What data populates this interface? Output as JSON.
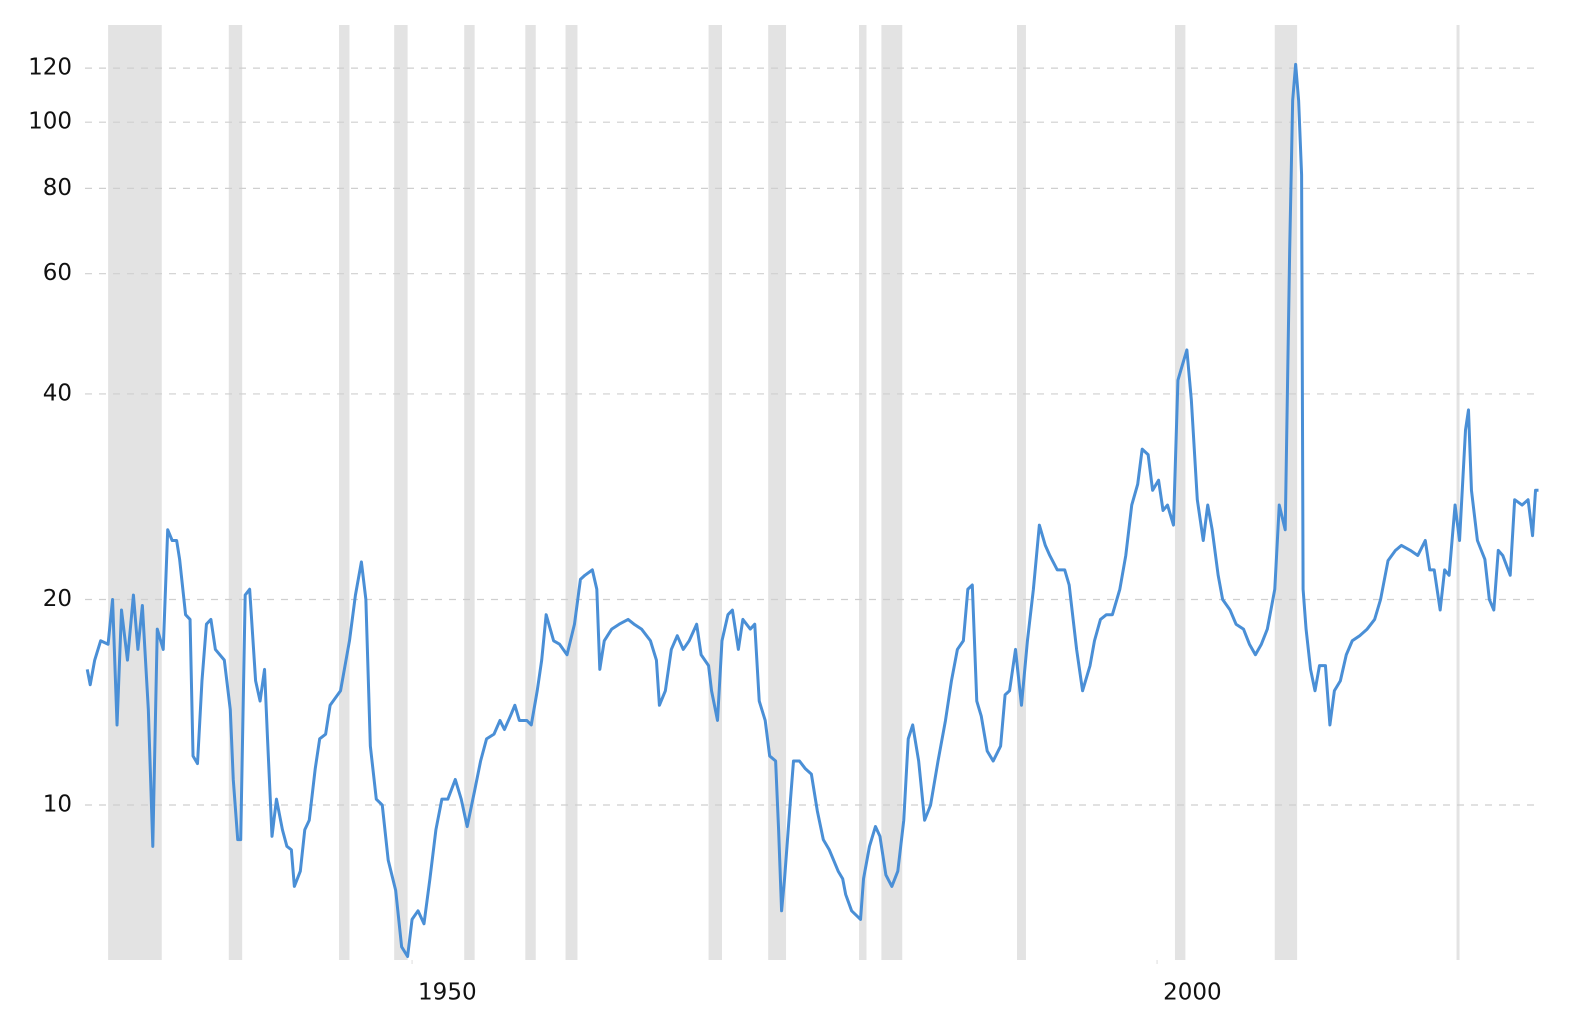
{
  "chart_data": {
    "type": "line",
    "log_scale": true,
    "grid": true,
    "shade_color": "#e3e3e3",
    "xlim": [
      1928.05,
      2025.7
    ],
    "ylim": [
      5.93,
      136
    ],
    "xticks": [
      1950,
      2000
    ],
    "yticks": [
      10,
      20,
      40,
      60,
      80,
      100,
      120
    ],
    "shaded_periods": [
      [
        1929.6,
        1933.2
      ],
      [
        1937.7,
        1938.6
      ],
      [
        1945.1,
        1945.8
      ],
      [
        1948.8,
        1949.7
      ],
      [
        1953.5,
        1954.2
      ],
      [
        1957.6,
        1958.3
      ],
      [
        1960.3,
        1961.1
      ],
      [
        1969.9,
        1970.8
      ],
      [
        1973.9,
        1975.1
      ],
      [
        1980.0,
        1980.5
      ],
      [
        1981.5,
        1982.9
      ],
      [
        1990.6,
        1991.2
      ],
      [
        2001.2,
        2001.9
      ],
      [
        2007.9,
        2009.4
      ],
      [
        2020.1,
        2020.3
      ]
    ],
    "series": [
      {
        "color": "#4a8fd6",
        "x": [
          1928.2,
          1928.4,
          1928.7,
          1929.1,
          1929.6,
          1929.9,
          1930.2,
          1930.5,
          1930.9,
          1931.3,
          1931.6,
          1931.9,
          1932.3,
          1932.6,
          1932.9,
          1933.3,
          1933.6,
          1933.9,
          1934.2,
          1934.4,
          1934.8,
          1935.1,
          1935.3,
          1935.6,
          1935.9,
          1936.2,
          1936.5,
          1936.8,
          1937.4,
          1937.8,
          1938.0,
          1938.3,
          1938.5,
          1938.8,
          1939.1,
          1939.5,
          1939.8,
          1940.1,
          1940.3,
          1940.6,
          1940.9,
          1941.3,
          1941.6,
          1941.9,
          1942.1,
          1942.5,
          1942.8,
          1943.1,
          1943.5,
          1943.8,
          1944.2,
          1944.5,
          1945.2,
          1945.8,
          1946.2,
          1946.6,
          1946.9,
          1947.2,
          1947.6,
          1948.0,
          1948.4,
          1948.9,
          1949.3,
          1949.7,
          1950.0,
          1950.4,
          1950.8,
          1951.2,
          1951.6,
          1952.0,
          1952.4,
          1952.9,
          1953.3,
          1953.7,
          1954.2,
          1954.6,
          1955.0,
          1955.5,
          1955.9,
          1956.2,
          1956.6,
          1956.9,
          1957.2,
          1957.7,
          1958.0,
          1958.4,
          1958.7,
          1959.0,
          1959.5,
          1959.9,
          1960.4,
          1960.9,
          1961.3,
          1961.6,
          1962.1,
          1962.4,
          1962.6,
          1962.9,
          1963.4,
          1963.9,
          1964.5,
          1964.9,
          1965.4,
          1966.0,
          1966.4,
          1966.6,
          1967.0,
          1967.4,
          1967.8,
          1968.2,
          1968.6,
          1969.1,
          1969.4,
          1969.9,
          1970.1,
          1970.5,
          1970.8,
          1971.2,
          1971.5,
          1971.9,
          1972.2,
          1972.7,
          1973.0,
          1973.3,
          1973.7,
          1974.0,
          1974.4,
          1974.6,
          1974.8,
          1975.0,
          1975.4,
          1975.6,
          1976.0,
          1976.4,
          1976.8,
          1977.2,
          1977.6,
          1978.0,
          1978.6,
          1978.9,
          1979.1,
          1979.5,
          1980.1,
          1980.3,
          1980.7,
          1981.1,
          1981.4,
          1981.8,
          1982.2,
          1982.6,
          1983.0,
          1983.3,
          1983.6,
          1984.0,
          1984.4,
          1984.8,
          1985.3,
          1985.8,
          1986.2,
          1986.6,
          1987.0,
          1987.3,
          1987.6,
          1987.9,
          1988.2,
          1988.6,
          1989.0,
          1989.5,
          1989.8,
          1990.1,
          1990.5,
          1990.9,
          1991.3,
          1991.7,
          1992.1,
          1992.5,
          1992.8,
          1993.3,
          1993.8,
          1994.1,
          1994.6,
          1995.0,
          1995.5,
          1995.8,
          1996.2,
          1996.6,
          1997.0,
          1997.5,
          1997.9,
          1998.3,
          1998.7,
          1999.0,
          1999.4,
          1999.7,
          2000.1,
          2000.4,
          2000.7,
          2001.1,
          2001.4,
          2001.7,
          2002.0,
          2002.3,
          2002.7,
          2003.1,
          2003.4,
          2003.7,
          2004.1,
          2004.4,
          2004.9,
          2005.3,
          2005.8,
          2006.2,
          2006.6,
          2007.0,
          2007.4,
          2007.9,
          2008.2,
          2008.6,
          2008.9,
          2009.1,
          2009.3,
          2009.5,
          2009.7,
          2009.8,
          2010.0,
          2010.3,
          2010.6,
          2010.9,
          2011.3,
          2011.6,
          2011.9,
          2012.3,
          2012.7,
          2013.1,
          2013.6,
          2014.1,
          2014.6,
          2015.0,
          2015.5,
          2016.0,
          2016.4,
          2017.0,
          2017.5,
          2018.0,
          2018.3,
          2018.6,
          2019.0,
          2019.3,
          2019.6,
          2020.0,
          2020.3,
          2020.7,
          2020.9,
          2021.1,
          2021.5,
          2022.0,
          2022.3,
          2022.6,
          2022.9,
          2023.2,
          2023.7,
          2024.0,
          2024.5,
          2024.9,
          2025.2,
          2025.4,
          2025.6
        ],
        "values": [
          15.8,
          15.0,
          16.3,
          17.4,
          17.2,
          20.0,
          13.1,
          19.3,
          16.3,
          20.3,
          16.9,
          19.6,
          13.8,
          8.7,
          18.1,
          16.9,
          25.3,
          24.4,
          24.4,
          22.9,
          19.0,
          18.7,
          11.8,
          11.5,
          15.2,
          18.4,
          18.7,
          16.9,
          16.3,
          13.8,
          10.9,
          8.9,
          8.9,
          20.3,
          20.7,
          15.2,
          14.2,
          15.8,
          12.5,
          9.0,
          10.2,
          9.2,
          8.7,
          8.6,
          7.6,
          8.0,
          9.2,
          9.5,
          11.3,
          12.5,
          12.7,
          14.0,
          14.7,
          17.4,
          20.3,
          22.7,
          20.0,
          12.2,
          10.2,
          10.0,
          8.3,
          7.5,
          6.2,
          6.0,
          6.8,
          7.0,
          6.7,
          7.8,
          9.2,
          10.2,
          10.2,
          10.9,
          10.2,
          9.3,
          10.5,
          11.6,
          12.5,
          12.7,
          13.3,
          12.9,
          13.5,
          14.0,
          13.3,
          13.3,
          13.1,
          14.7,
          16.3,
          19.0,
          17.4,
          17.2,
          16.6,
          18.4,
          21.4,
          21.7,
          22.1,
          20.7,
          15.8,
          17.4,
          18.1,
          18.4,
          18.7,
          18.4,
          18.1,
          17.4,
          16.3,
          14.0,
          14.7,
          16.9,
          17.7,
          16.9,
          17.4,
          18.4,
          16.6,
          16.0,
          14.7,
          13.3,
          17.4,
          19.0,
          19.3,
          16.9,
          18.7,
          18.1,
          18.4,
          14.2,
          13.3,
          11.8,
          11.6,
          9.2,
          7.0,
          7.8,
          10.2,
          11.6,
          11.6,
          11.3,
          11.1,
          9.8,
          8.9,
          8.6,
          8.0,
          7.8,
          7.4,
          7.0,
          6.8,
          7.8,
          8.7,
          9.3,
          9.0,
          7.9,
          7.6,
          8.0,
          9.5,
          12.5,
          13.1,
          11.6,
          9.5,
          10.0,
          11.6,
          13.3,
          15.2,
          16.9,
          17.4,
          20.7,
          21.0,
          14.2,
          13.5,
          12.0,
          11.6,
          12.2,
          14.5,
          14.7,
          16.9,
          14.0,
          17.4,
          20.7,
          25.7,
          24.0,
          23.2,
          22.1,
          22.1,
          21.0,
          16.9,
          14.7,
          16.0,
          17.4,
          18.7,
          19.0,
          19.0,
          20.7,
          23.2,
          27.5,
          29.5,
          33.2,
          32.6,
          28.9,
          29.9,
          27.0,
          27.5,
          25.7,
          41.9,
          44.1,
          46.4,
          39.2,
          28.0,
          24.4,
          27.5,
          25.3,
          21.7,
          20.0,
          19.3,
          18.4,
          18.1,
          17.2,
          16.6,
          17.2,
          18.1,
          20.7,
          27.5,
          25.3,
          65,
          107.6,
          121.5,
          107.6,
          83.7,
          20.7,
          18.1,
          15.8,
          14.7,
          16.0,
          16.0,
          13.1,
          14.7,
          15.2,
          16.6,
          17.4,
          17.7,
          18.1,
          18.7,
          20.0,
          22.8,
          23.6,
          24.0,
          23.6,
          23.2,
          24.4,
          22.1,
          22.1,
          19.3,
          22.1,
          21.7,
          27.5,
          24.4,
          35.4,
          37.9,
          28.9,
          24.4,
          22.9,
          20.0,
          19.3,
          23.6,
          23.2,
          21.7,
          28.0,
          27.5,
          28.0,
          24.8,
          28.9,
          28.9
        ]
      }
    ]
  }
}
